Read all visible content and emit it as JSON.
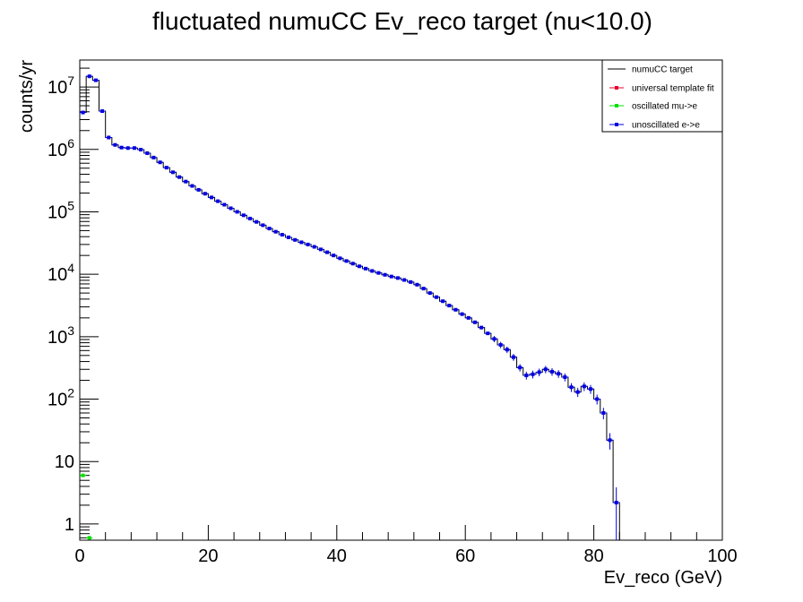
{
  "chart_data": {
    "type": "line",
    "title": "fluctuated numuCC Ev_reco target (nu<10.0)",
    "xlabel": "Ev_reco (GeV)",
    "ylabel": "counts/yr",
    "xlim": [
      0,
      100
    ],
    "ylim": [
      0.55,
      27000000
    ],
    "yscale": "log",
    "grid": false,
    "legend_position": "top-right",
    "x_ticks": [
      0,
      20,
      40,
      60,
      80,
      100
    ],
    "x_tick_labels": [
      "0",
      "20",
      "40",
      "60",
      "80",
      "100"
    ],
    "y_ticks": [
      1,
      10,
      100,
      1000,
      10000,
      100000,
      1000000,
      10000000
    ],
    "y_tick_labels": [
      {
        "base": "1",
        "exp": ""
      },
      {
        "base": "10",
        "exp": ""
      },
      {
        "base": "10",
        "exp": "2"
      },
      {
        "base": "10",
        "exp": "3"
      },
      {
        "base": "10",
        "exp": "4"
      },
      {
        "base": "10",
        "exp": "5"
      },
      {
        "base": "10",
        "exp": "6"
      },
      {
        "base": "10",
        "exp": "7"
      }
    ],
    "bin_width": 1,
    "bin_edges_start": 0,
    "series": [
      {
        "name": "numuCC target",
        "style": "histogram",
        "color": "#000000",
        "values": [
          3900000,
          14800000,
          12800000,
          4100000,
          1550000,
          1180000,
          1070000,
          1050000,
          1050000,
          990000,
          870000,
          740000,
          620000,
          510000,
          430000,
          360000,
          305000,
          260000,
          225000,
          195000,
          170000,
          148000,
          130000,
          114000,
          100000,
          88000,
          78000,
          69000,
          61000,
          54000,
          48000,
          43000,
          39000,
          35500,
          32500,
          30000,
          27500,
          25000,
          22500,
          20000,
          18000,
          16300,
          14800,
          13400,
          12300,
          11300,
          10500,
          9800,
          9200,
          8700,
          8100,
          7500,
          6800,
          5900,
          5000,
          4300,
          3700,
          3150,
          2700,
          2300,
          2000,
          1700,
          1400,
          1130,
          920,
          740,
          620,
          470,
          320,
          240,
          250,
          270,
          300,
          275,
          255,
          225,
          155,
          130,
          160,
          145,
          100,
          60,
          22,
          2.2,
          0,
          0
        ]
      },
      {
        "name": "universal template fit",
        "style": "markers",
        "color": "#e8002a"
      },
      {
        "name": "oscillated mu->e",
        "style": "markers",
        "color": "#00e000",
        "points": [
          [
            0.5,
            6
          ],
          [
            1.5,
            0.6
          ]
        ]
      },
      {
        "name": "unoscillated e->e",
        "style": "markers",
        "color": "#0000e0",
        "values": [
          3900000,
          14800000,
          12800000,
          4100000,
          1550000,
          1180000,
          1070000,
          1050000,
          1050000,
          990000,
          870000,
          740000,
          620000,
          510000,
          430000,
          360000,
          305000,
          260000,
          225000,
          195000,
          170000,
          148000,
          130000,
          114000,
          100000,
          88000,
          78000,
          69000,
          61000,
          54000,
          48000,
          43000,
          39000,
          35500,
          32500,
          30000,
          27500,
          25000,
          22500,
          20000,
          18000,
          16300,
          14800,
          13400,
          12300,
          11300,
          10500,
          9800,
          9200,
          8700,
          8100,
          7500,
          6800,
          5900,
          5000,
          4300,
          3700,
          3150,
          2700,
          2300,
          2000,
          1700,
          1400,
          1130,
          920,
          740,
          620,
          470,
          320,
          240,
          250,
          270,
          300,
          275,
          255,
          225,
          155,
          130,
          160,
          145,
          100,
          60,
          22,
          2.2,
          0,
          0
        ]
      }
    ]
  }
}
